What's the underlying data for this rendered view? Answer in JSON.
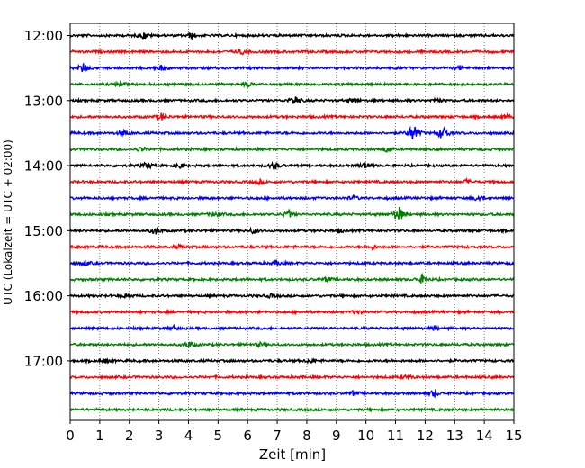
{
  "chart_data": {
    "type": "line",
    "title": "",
    "xlabel": "Zeit  [min]",
    "ylabel": "UTC (Lokalzeit = UTC + 02:00)",
    "xlim": [
      0,
      15
    ],
    "x_ticks": [
      "0",
      "1",
      "2",
      "3",
      "4",
      "5",
      "6",
      "7",
      "8",
      "9",
      "10",
      "11",
      "12",
      "13",
      "14",
      "15"
    ],
    "y_ticks": [
      "12:00",
      "13:00",
      "14:00",
      "15:00",
      "16:00",
      "17:00"
    ],
    "trace_interval_min": 15,
    "start_time": "12:00",
    "grid": "vertical dotted",
    "colors_cycle": [
      "#000000",
      "#ff0000",
      "#0000ff",
      "#008000"
    ],
    "series": [
      {
        "start": "12:00",
        "color": "#000000",
        "events": [
          [
            2.5,
            0.9
          ],
          [
            4.1,
            0.8
          ]
        ]
      },
      {
        "start": "12:15",
        "color": "#ff0000",
        "events": [
          [
            5.8,
            0.6
          ]
        ]
      },
      {
        "start": "12:30",
        "color": "#0000ff",
        "events": [
          [
            0.45,
            1.4
          ],
          [
            3.1,
            0.6
          ],
          [
            13.2,
            0.6
          ]
        ]
      },
      {
        "start": "12:45",
        "color": "#008000",
        "events": [
          [
            1.7,
            0.9
          ],
          [
            6.0,
            0.5
          ]
        ]
      },
      {
        "start": "13:00",
        "color": "#000000",
        "events": [
          [
            7.6,
            1.5
          ],
          [
            9.6,
            0.7
          ],
          [
            12.4,
            0.6
          ]
        ]
      },
      {
        "start": "13:15",
        "color": "#ff0000",
        "events": [
          [
            3.1,
            1.0
          ],
          [
            14.8,
            0.5
          ]
        ]
      },
      {
        "start": "13:30",
        "color": "#0000ff",
        "events": [
          [
            11.6,
            3.0
          ],
          [
            12.6,
            2.2
          ],
          [
            1.8,
            0.7
          ]
        ]
      },
      {
        "start": "13:45",
        "color": "#008000",
        "events": [
          [
            2.4,
            0.7
          ],
          [
            10.7,
            0.9
          ]
        ]
      },
      {
        "start": "14:00",
        "color": "#000000",
        "events": [
          [
            2.6,
            1.1
          ],
          [
            3.7,
            0.9
          ],
          [
            6.9,
            1.1
          ],
          [
            10.0,
            1.2
          ]
        ]
      },
      {
        "start": "14:15",
        "color": "#ff0000",
        "events": [
          [
            6.4,
            0.6
          ],
          [
            13.4,
            0.5
          ]
        ]
      },
      {
        "start": "14:30",
        "color": "#0000ff",
        "events": [
          [
            13.8,
            0.9
          ],
          [
            9.6,
            0.5
          ]
        ]
      },
      {
        "start": "14:45",
        "color": "#008000",
        "events": [
          [
            11.1,
            2.6
          ],
          [
            7.4,
            1.0
          ],
          [
            4.9,
            0.8
          ]
        ]
      },
      {
        "start": "15:00",
        "color": "#000000",
        "events": [
          [
            2.9,
            1.1
          ],
          [
            6.2,
            0.8
          ],
          [
            9.1,
            0.6
          ]
        ]
      },
      {
        "start": "15:15",
        "color": "#ff0000",
        "events": [
          [
            3.7,
            0.5
          ],
          [
            10.2,
            0.5
          ]
        ]
      },
      {
        "start": "15:30",
        "color": "#0000ff",
        "events": [
          [
            0.5,
            0.7
          ],
          [
            7.0,
            0.6
          ]
        ]
      },
      {
        "start": "15:45",
        "color": "#008000",
        "events": [
          [
            11.9,
            1.2
          ],
          [
            8.7,
            0.6
          ]
        ]
      },
      {
        "start": "16:00",
        "color": "#000000",
        "events": [
          [
            1.9,
            0.6
          ],
          [
            6.8,
            0.5
          ]
        ]
      },
      {
        "start": "16:15",
        "color": "#ff0000",
        "events": [
          [
            9.7,
            0.6
          ]
        ]
      },
      {
        "start": "16:30",
        "color": "#0000ff",
        "events": [
          [
            12.3,
            0.5
          ],
          [
            3.5,
            0.5
          ]
        ]
      },
      {
        "start": "16:45",
        "color": "#008000",
        "events": [
          [
            4.0,
            0.9
          ],
          [
            6.4,
            0.5
          ]
        ]
      },
      {
        "start": "17:00",
        "color": "#000000",
        "events": [
          [
            8.1,
            0.5
          ],
          [
            1.2,
            0.5
          ]
        ]
      },
      {
        "start": "17:15",
        "color": "#ff0000",
        "events": [
          [
            11.4,
            0.6
          ]
        ]
      },
      {
        "start": "17:30",
        "color": "#0000ff",
        "events": [
          [
            12.3,
            0.9
          ],
          [
            9.6,
            0.6
          ]
        ]
      },
      {
        "start": "17:45",
        "color": "#008000",
        "events": []
      }
    ]
  }
}
